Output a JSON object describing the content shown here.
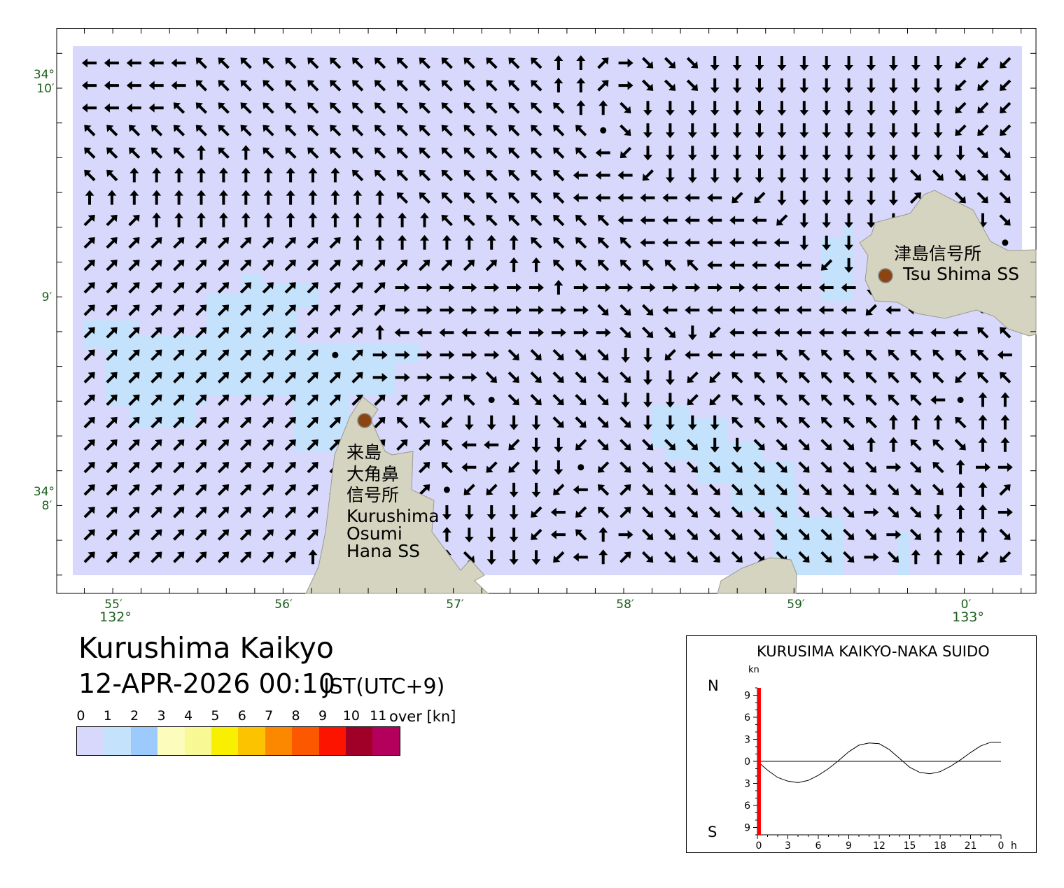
{
  "title": "Kurushima Kaikyo",
  "datetime": "12-APR-2026 00:10",
  "timezone": "JST(UTC+9)",
  "map": {
    "colors": {
      "sea_0_1": "#d8d8fc",
      "sea_1_2": "#c4e2fc",
      "land": "#d4d4c0",
      "station": "#8b4513",
      "axis_label": "#1a5e1a"
    },
    "x_labels": [
      {
        "min": "55′",
        "deg": "132°"
      },
      {
        "min": "56′"
      },
      {
        "min": "57′"
      },
      {
        "min": "58′"
      },
      {
        "min": "59′"
      },
      {
        "min": "0′",
        "deg": "133°"
      }
    ],
    "y_labels": [
      {
        "deg": "34°",
        "min": "10′"
      },
      {
        "min": "9′"
      },
      {
        "deg": "34°",
        "min": "8′"
      }
    ],
    "stations": [
      {
        "name_lines": [
          "来島",
          "大角鼻",
          "信号所",
          "Kurushima",
          "Osumi",
          "Hana SS"
        ]
      },
      {
        "name_lines": [
          "津島信号所",
          "Tsu Shima SS"
        ]
      }
    ],
    "current_direction_grid": [
      "aaaaaqqqqqqqqqqqqqqqqwwedcccxxxxxxxxxxxzzz",
      "aaaaaqqqqqqqqqqqqqqqqwwedcccxxxxxxxxxxxzzz",
      "aaaaqqqqqqqqqqqqqqqqqqwwcxxxxxxxxxxxxxxzzz",
      "qqqqqqqqqqqqqqqqqqqqqqq.cxxxxxxxxxxxxxxzzz",
      "qqqqqwqwqqqqqqqqqqqqqqqazxxxxxxxxxxxxxxxcc",
      "qqwwwwwwwwwwqqqqqqqqqqaaazxxxxxxxxxxxccccc",
      "wwwwwwwwwwwwwwqqqqqqqqaaaaaaazzxxxxxxecccc",
      "eeewwwwwwwwwwwwwqqqqqqqqaaaaaaazxxxxxxxxxc",
      "eeeeeeeeeeeewwwwwwwwqqqqqaaaaaaaxxxxxxxxx.",
      "eeeeeeeeeeeeeeeeeeewwqqqqqqqaaaaazxxxxxxxx",
      "eeeeeeeeeeeeeedddddddwddddddddaaaaaxxxxxxx",
      "eeeeeeeeeeeeeedddddddddcccaaaaaaaaazaaaa.a",
      "eeeeeeeeeeeeewaaaaaaddddcccxzaaaaaaaaaaaqq",
      "eeeeeeeeeee.eddddddcccccxxzaaaaqqqqqqqqqqa",
      "eeeeeeeeeeeeedddddcccccccxxzzqqqqqqqqqqzqq",
      "eeeeeeeeeeeeeeeeeq.cccccxxxzzqqqqqqqqqa.ww",
      "eeeeeeeeeeeeeeqqzxxxxccccxxxxqqqqqqqwwwqww",
      "eeeeeeeeeeeeweeeqaazxxzcccccxxcccccwwqqcww",
      "eeeeeeeeeeeeweeeqazzxx.zccccccccccccdcqwdd",
      "eeeeeeeeeeeeweee.zzxxzaqeccccccccccccccwwe",
      "eeeeeeeeeeewwwwwxxxxzazqeccccccccccdccxwwd",
      "eeeeeeeeeeewwwwwwxxxzaqwdcccccccccccdcwwwc",
      "eeeeeeeeeewwwwwwwcxxxzaweccccccccccdcwwwzz"
    ]
  },
  "legend": {
    "labels": [
      "0",
      "1",
      "2",
      "3",
      "4",
      "5",
      "6",
      "7",
      "8",
      "9",
      "10",
      "11"
    ],
    "unit": "over [kn]",
    "colors": [
      "#d8d8fc",
      "#c4e2fc",
      "#9ccafc",
      "#fcfcbc",
      "#f8f894",
      "#f8f000",
      "#fcc400",
      "#fc8800",
      "#fc5800",
      "#fc1400",
      "#a00028",
      "#b4005c"
    ]
  },
  "chart_data": {
    "type": "line",
    "title": "KURUSIMA KAIKYO-NAKA SUIDO",
    "ylabel": "kn",
    "y_top_label": "N",
    "y_bottom_label": "S",
    "ylim": [
      -10,
      10
    ],
    "xlim": [
      0,
      24
    ],
    "x_ticks": [
      "0",
      "3",
      "6",
      "9",
      "12",
      "15",
      "18",
      "21",
      "0"
    ],
    "x_unit": "h",
    "y_ticks": [
      "9",
      "6",
      "3",
      "0",
      "3",
      "6",
      "9"
    ],
    "current_time_marker_h": 0.17,
    "current_time_marker_color": "#ff0000",
    "x": [
      0,
      1,
      2,
      3,
      4,
      5,
      6,
      7,
      8,
      9,
      10,
      11,
      12,
      13,
      14,
      15,
      16,
      17,
      18,
      19,
      20,
      21,
      22,
      23,
      24
    ],
    "values": [
      0,
      -1.2,
      -2.2,
      -2.7,
      -2.9,
      -2.6,
      -1.9,
      -1.0,
      0.1,
      1.3,
      2.2,
      2.5,
      2.4,
      1.6,
      0.4,
      -0.8,
      -1.5,
      -1.7,
      -1.4,
      -0.7,
      0.2,
      1.2,
      2.1,
      2.6,
      2.6
    ]
  }
}
